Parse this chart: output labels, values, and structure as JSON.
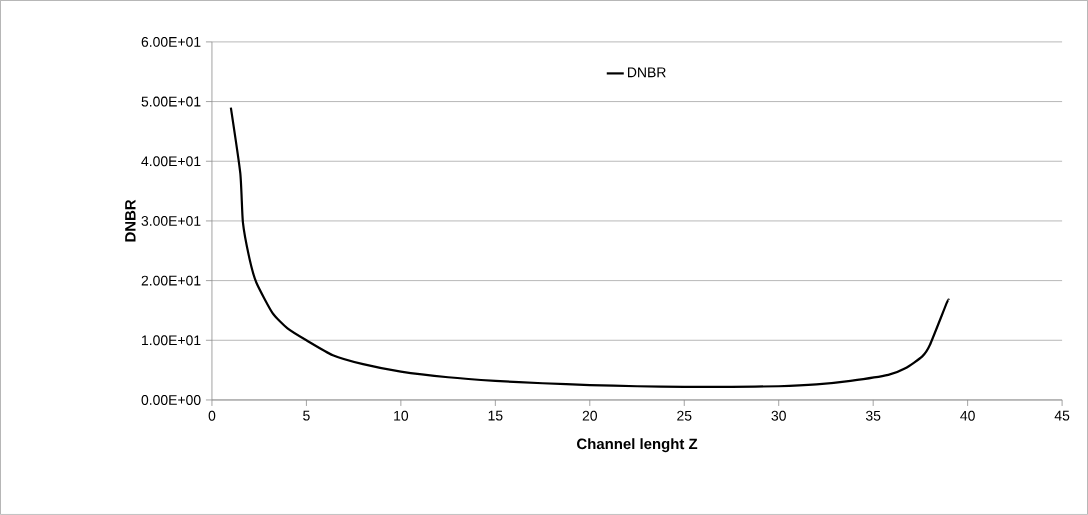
{
  "chart_data": {
    "type": "line",
    "xlabel": "Channel lenght Z",
    "ylabel": "DNBR",
    "x": [
      1,
      1.5,
      1.64,
      2.0,
      2.36,
      3.2,
      4,
      5,
      6.4,
      8,
      10,
      12.5,
      15,
      17.5,
      20,
      22.5,
      25,
      27.5,
      30,
      32,
      33.8,
      35.8,
      36.7,
      37.6,
      38.0,
      38.9,
      39
    ],
    "series": [
      {
        "name": "DNBR",
        "color": "#000000",
        "values": [
          49,
          38,
          29.7,
          23.5,
          19.6,
          14.6,
          12,
          10,
          7.5,
          6,
          4.75,
          3.8,
          3.2,
          2.8,
          2.5,
          2.3,
          2.2,
          2.2,
          2.3,
          2.6,
          3.2,
          4.2,
          5.3,
          7.3,
          9.2,
          16.3,
          16.8
        ]
      }
    ],
    "xlim": [
      0,
      45
    ],
    "xticks": [
      0,
      5,
      10,
      15,
      20,
      25,
      30,
      35,
      40,
      45
    ],
    "ylim": [
      0,
      60
    ],
    "yticks": [
      {
        "value": 0,
        "label": "0.00E+00"
      },
      {
        "value": 10,
        "label": "1.00E+01"
      },
      {
        "value": 20,
        "label": "2.00E+01"
      },
      {
        "value": 30,
        "label": "3.00E+01"
      },
      {
        "value": 40,
        "label": "4.00E+01"
      },
      {
        "value": 50,
        "label": "5.00E+01"
      },
      {
        "value": 60,
        "label": "6.00E+01"
      }
    ],
    "grid": "y",
    "legend": "top",
    "line_style": "solid",
    "marker": "none"
  }
}
